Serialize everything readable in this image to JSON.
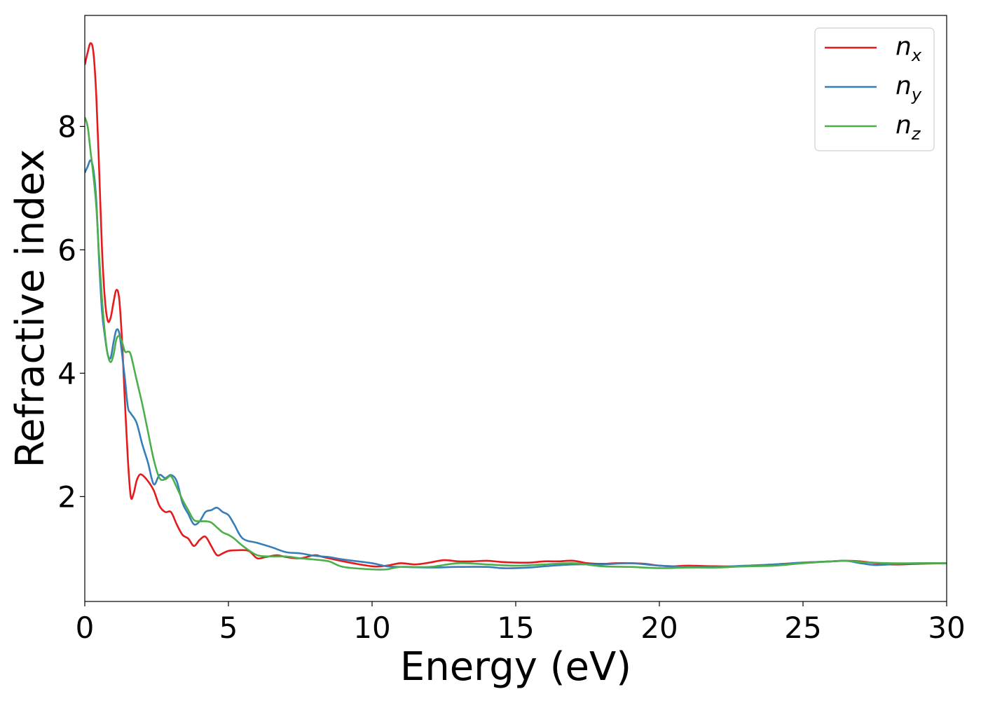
{
  "chart_data": {
    "type": "line",
    "xlabel": "Energy (eV)",
    "ylabel": "Refractive index",
    "xlim": [
      0,
      30
    ],
    "ylim": [
      0.3,
      9.8
    ],
    "xticks": [
      0,
      5,
      10,
      15,
      20,
      25,
      30
    ],
    "yticks": [
      2,
      4,
      6,
      8
    ],
    "grid": false,
    "legend_position": "top-right",
    "series": [
      {
        "name": "n_x",
        "label_main": "n",
        "label_sub": "x",
        "color": "#e41a1c",
        "x": [
          0,
          0.1,
          0.2,
          0.3,
          0.4,
          0.5,
          0.6,
          0.7,
          0.8,
          0.9,
          1.0,
          1.1,
          1.2,
          1.3,
          1.4,
          1.5,
          1.6,
          1.7,
          1.8,
          1.9,
          2.0,
          2.2,
          2.4,
          2.6,
          2.8,
          3.0,
          3.2,
          3.4,
          3.6,
          3.8,
          4.0,
          4.2,
          4.4,
          4.6,
          4.8,
          5.0,
          5.3,
          5.7,
          6.0,
          6.3,
          6.7,
          7.0,
          7.5,
          8.0,
          8.3,
          9.0,
          10.0,
          10.5,
          11.0,
          11.5,
          12.0,
          12.5,
          13.0,
          13.5,
          14.0,
          14.5,
          15.0,
          15.5,
          16.0,
          16.5,
          17.0,
          17.5,
          18.0,
          18.5,
          19.0,
          19.5,
          20.0,
          20.5,
          21.0,
          22.0,
          23.0,
          24.0,
          25.0,
          26.0,
          26.5,
          27.0,
          28.0,
          29.0,
          30.0
        ],
        "values": [
          9.0,
          9.2,
          9.35,
          9.2,
          8.5,
          7.3,
          6.0,
          5.2,
          4.85,
          4.9,
          5.15,
          5.35,
          5.2,
          4.5,
          3.5,
          2.6,
          2.0,
          2.05,
          2.25,
          2.35,
          2.35,
          2.25,
          2.1,
          1.85,
          1.75,
          1.75,
          1.55,
          1.38,
          1.32,
          1.2,
          1.3,
          1.35,
          1.2,
          1.05,
          1.08,
          1.12,
          1.13,
          1.12,
          1.0,
          1.02,
          1.05,
          1.02,
          1.0,
          1.05,
          1.02,
          0.95,
          0.87,
          0.88,
          0.92,
          0.9,
          0.93,
          0.97,
          0.95,
          0.95,
          0.96,
          0.94,
          0.93,
          0.93,
          0.95,
          0.95,
          0.96,
          0.92,
          0.91,
          0.92,
          0.92,
          0.91,
          0.88,
          0.87,
          0.88,
          0.87,
          0.87,
          0.9,
          0.93,
          0.95,
          0.96,
          0.95,
          0.9,
          0.91,
          0.92
        ]
      },
      {
        "name": "n_y",
        "label_main": "n",
        "label_sub": "y",
        "color": "#377eb8",
        "x": [
          0,
          0.1,
          0.2,
          0.3,
          0.4,
          0.5,
          0.6,
          0.7,
          0.8,
          0.9,
          1.0,
          1.1,
          1.2,
          1.3,
          1.4,
          1.5,
          1.6,
          1.8,
          2.0,
          2.2,
          2.4,
          2.6,
          2.8,
          3.0,
          3.2,
          3.4,
          3.6,
          3.8,
          4.0,
          4.2,
          4.4,
          4.6,
          4.8,
          5.0,
          5.2,
          5.5,
          6.0,
          6.5,
          7.0,
          7.5,
          8.0,
          8.5,
          9.0,
          10.0,
          10.5,
          11.0,
          12.0,
          13.0,
          14.0,
          14.5,
          15.0,
          15.5,
          16.0,
          17.0,
          18.0,
          19.0,
          20.0,
          21.0,
          22.0,
          23.0,
          24.0,
          25.0,
          26.0,
          26.5,
          27.0,
          27.5,
          28.0,
          29.0,
          30.0
        ],
        "values": [
          7.25,
          7.35,
          7.45,
          7.3,
          6.8,
          5.8,
          5.0,
          4.6,
          4.3,
          4.25,
          4.5,
          4.7,
          4.65,
          4.3,
          3.9,
          3.45,
          3.35,
          3.2,
          2.85,
          2.55,
          2.2,
          2.35,
          2.3,
          2.35,
          2.25,
          1.9,
          1.72,
          1.55,
          1.6,
          1.75,
          1.78,
          1.82,
          1.75,
          1.7,
          1.55,
          1.32,
          1.25,
          1.18,
          1.1,
          1.08,
          1.04,
          1.02,
          0.98,
          0.92,
          0.87,
          0.86,
          0.85,
          0.86,
          0.86,
          0.84,
          0.84,
          0.85,
          0.87,
          0.9,
          0.9,
          0.92,
          0.88,
          0.86,
          0.86,
          0.88,
          0.9,
          0.93,
          0.95,
          0.96,
          0.92,
          0.89,
          0.9,
          0.92,
          0.92
        ]
      },
      {
        "name": "n_z",
        "label_main": "n",
        "label_sub": "z",
        "color": "#4daf4a",
        "x": [
          0,
          0.1,
          0.2,
          0.3,
          0.4,
          0.5,
          0.6,
          0.7,
          0.8,
          0.9,
          1.0,
          1.1,
          1.2,
          1.3,
          1.4,
          1.5,
          1.6,
          1.8,
          2.0,
          2.2,
          2.4,
          2.6,
          2.8,
          3.0,
          3.2,
          3.4,
          3.6,
          3.8,
          4.0,
          4.2,
          4.4,
          4.6,
          4.8,
          5.0,
          5.2,
          5.5,
          6.0,
          6.5,
          7.0,
          7.5,
          8.0,
          8.5,
          9.0,
          10.0,
          10.5,
          11.0,
          12.0,
          13.0,
          14.0,
          15.0,
          16.0,
          17.0,
          18.0,
          19.0,
          20.0,
          21.0,
          22.0,
          23.0,
          24.0,
          25.0,
          26.0,
          26.5,
          27.0,
          28.0,
          29.0,
          30.0
        ],
        "values": [
          8.15,
          8.0,
          7.6,
          7.2,
          6.7,
          5.9,
          5.2,
          4.65,
          4.3,
          4.18,
          4.3,
          4.55,
          4.6,
          4.5,
          4.35,
          4.35,
          4.3,
          3.9,
          3.5,
          3.05,
          2.6,
          2.3,
          2.28,
          2.33,
          2.15,
          1.95,
          1.78,
          1.62,
          1.6,
          1.6,
          1.58,
          1.5,
          1.42,
          1.38,
          1.32,
          1.2,
          1.05,
          1.03,
          1.03,
          1.0,
          0.98,
          0.95,
          0.86,
          0.82,
          0.82,
          0.86,
          0.86,
          0.92,
          0.9,
          0.88,
          0.9,
          0.92,
          0.87,
          0.86,
          0.84,
          0.85,
          0.85,
          0.87,
          0.88,
          0.92,
          0.95,
          0.96,
          0.94,
          0.92,
          0.92,
          0.92
        ]
      }
    ]
  }
}
